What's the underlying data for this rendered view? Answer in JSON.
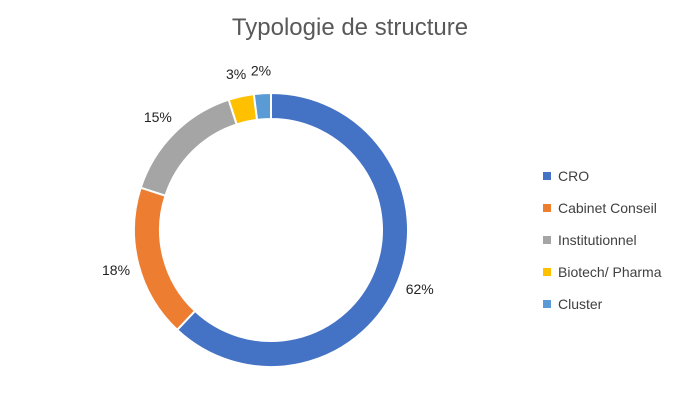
{
  "chart_data": {
    "type": "pie",
    "variant": "donut",
    "title": "Typologie de structure",
    "legend_position": "right",
    "slices": [
      {
        "label": "CRO",
        "value": 62,
        "display": "62%",
        "color": "#4472C4"
      },
      {
        "label": "Cabinet Conseil",
        "value": 18,
        "display": "18%",
        "color": "#ED7D31"
      },
      {
        "label": "Institutionnel",
        "value": 15,
        "display": "15%",
        "color": "#A5A5A5"
      },
      {
        "label": "Biotech/ Pharma",
        "value": 3,
        "display": "3%",
        "color": "#FFC000"
      },
      {
        "label": "Cluster",
        "value": 2,
        "display": "2%",
        "color": "#5B9BD5"
      }
    ]
  }
}
